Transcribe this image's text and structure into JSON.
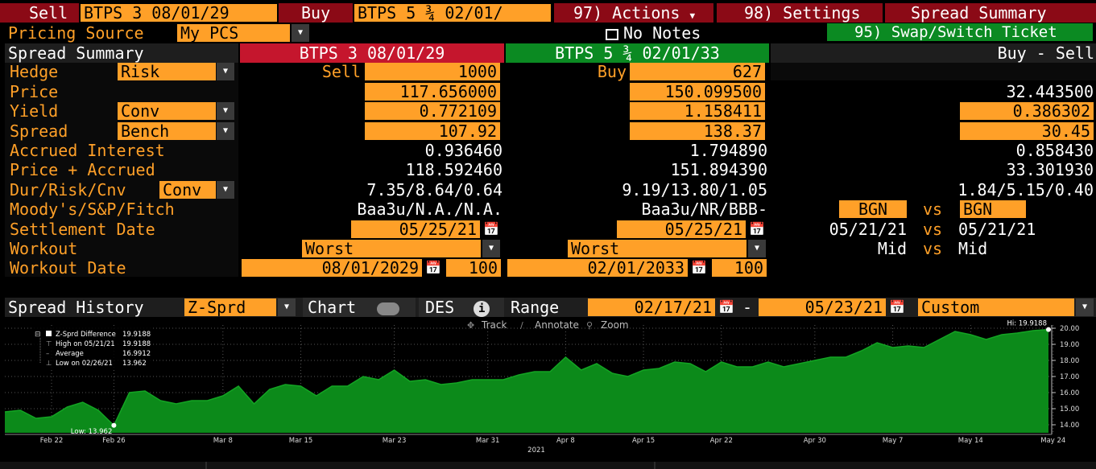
{
  "top": {
    "sell_label": "Sell",
    "sell_security": "BTPS 3 08/01/29",
    "buy_label": "Buy",
    "buy_security": "BTPS 5 ¾ 02/01/",
    "actions": "97) Actions",
    "settings": "98) Settings",
    "spread_summary": "Spread Summary"
  },
  "second": {
    "pricing_source_label": "Pricing Source",
    "pricing_source": "My PCS",
    "no_notes": "No Notes",
    "swap_ticket": "95) Swap/Switch Ticket"
  },
  "table": {
    "title": "Spread Summary",
    "col_sell": "BTPS 3 08/01/29",
    "col_buy": "BTPS 5 ¾ 02/01/33",
    "col_diff": "Buy - Sell",
    "rows": {
      "hedge": {
        "label": "Hedge",
        "option": "Risk",
        "sell_label": "Sell",
        "sell": "1000",
        "buy_label": "Buy",
        "buy": "627"
      },
      "price": {
        "label": "Price",
        "sell": "117.656000",
        "buy": "150.099500",
        "diff": "32.443500"
      },
      "yield": {
        "label": "Yield",
        "option": "Conv",
        "sell": "0.772109",
        "buy": "1.158411",
        "diff": "0.386302"
      },
      "spread": {
        "label": "Spread",
        "option": "Bench",
        "sell": "107.92",
        "buy": "138.37",
        "diff": "30.45"
      },
      "accrued": {
        "label": "Accrued Interest",
        "sell": "0.936460",
        "buy": "1.794890",
        "diff": "0.858430"
      },
      "price_accrued": {
        "label": "Price + Accrued",
        "sell": "118.592460",
        "buy": "151.894390",
        "diff": "33.301930"
      },
      "dur": {
        "label": "Dur/Risk/Cnv",
        "option": "Conv",
        "sell": "7.35/8.64/0.64",
        "buy": "9.19/13.80/1.05",
        "diff": "1.84/5.15/0.40"
      },
      "ratings": {
        "label": "Moody's/S&P/Fitch",
        "sell": "Baa3u/N.A./N.A.",
        "buy": "Baa3u/NR/BBB-",
        "diff_a": "BGN",
        "vs": "vs",
        "diff_b": "BGN"
      },
      "settlement": {
        "label": "Settlement Date",
        "sell": "05/25/21",
        "buy": "05/25/21",
        "diff_a": "05/21/21",
        "vs": "vs",
        "diff_b": "05/21/21"
      },
      "workout": {
        "label": "Workout",
        "sell": "Worst",
        "buy": "Worst",
        "diff_a": "Mid",
        "vs": "vs",
        "diff_b": "Mid"
      },
      "workout_date": {
        "label": "Workout Date",
        "sell": "08/01/2029",
        "sell_px": "100",
        "buy": "02/01/2033",
        "buy_px": "100"
      }
    }
  },
  "history_bar": {
    "label": "Spread History",
    "field": "Z-Sprd",
    "chart": "Chart",
    "des": "DES",
    "range_label": "Range",
    "start": "02/17/21",
    "dash": "-",
    "end": "05/23/21",
    "period": "Custom"
  },
  "chart_tools": {
    "track": "Track",
    "annotate": "Annotate",
    "zoom": "Zoom"
  },
  "legend": {
    "title": "Z-Sprd Difference",
    "title_val": "19.9188",
    "high": "High on 05/21/21",
    "high_val": "19.9188",
    "avg": "Average",
    "avg_val": "16.9912",
    "low": "Low on 02/26/21",
    "low_val": "13.962"
  },
  "chart_data": {
    "type": "area",
    "series": [
      {
        "name": "Z-Sprd Difference",
        "color": "#0c8a1a"
      }
    ],
    "x": [
      "02/17",
      "02/18",
      "02/19",
      "02/22",
      "02/23",
      "02/24",
      "02/25",
      "02/26",
      "02/27",
      "03/01",
      "03/02",
      "03/03",
      "03/04",
      "03/05",
      "03/08",
      "03/09",
      "03/10",
      "03/11",
      "03/12",
      "03/15",
      "03/16",
      "03/17",
      "03/18",
      "03/19",
      "03/22",
      "03/23",
      "03/24",
      "03/25",
      "03/26",
      "03/29",
      "03/30",
      "03/31",
      "04/01",
      "04/05",
      "04/06",
      "04/07",
      "04/08",
      "04/09",
      "04/12",
      "04/13",
      "04/14",
      "04/15",
      "04/16",
      "04/19",
      "04/20",
      "04/21",
      "04/22",
      "04/23",
      "04/26",
      "04/27",
      "04/28",
      "04/29",
      "04/30",
      "05/03",
      "05/04",
      "05/05",
      "05/06",
      "05/07",
      "05/10",
      "05/11",
      "05/12",
      "05/13",
      "05/14",
      "05/17",
      "05/18",
      "05/19",
      "05/20",
      "05/21"
    ],
    "y": [
      14.8,
      14.9,
      14.4,
      14.5,
      15.1,
      15.4,
      14.9,
      13.962,
      16.0,
      16.1,
      15.5,
      15.3,
      15.5,
      15.5,
      15.8,
      16.4,
      15.3,
      16.2,
      16.5,
      16.4,
      15.8,
      16.4,
      16.4,
      17.0,
      16.8,
      17.4,
      16.7,
      16.8,
      16.5,
      16.6,
      16.8,
      16.8,
      16.8,
      17.1,
      17.3,
      17.3,
      18.2,
      17.4,
      17.8,
      17.2,
      17.0,
      17.4,
      17.5,
      17.9,
      17.8,
      17.3,
      17.9,
      17.6,
      17.6,
      17.9,
      17.6,
      17.8,
      18.0,
      18.2,
      18.2,
      18.6,
      19.1,
      18.8,
      18.9,
      18.8,
      19.3,
      19.8,
      19.6,
      19.3,
      19.6,
      19.7,
      19.85,
      19.9188
    ],
    "x_ticks": [
      "Feb 22",
      "Feb 26",
      "Mar 8",
      "Mar 15",
      "Mar 23",
      "Mar 31",
      "Apr 8",
      "Apr 15",
      "Apr 22",
      "Apr 30",
      "May 7",
      "May 14",
      "May 24"
    ],
    "x_tick_index": [
      3,
      7,
      14,
      19,
      25,
      31,
      36,
      41,
      46,
      52,
      57,
      62,
      67.3
    ],
    "x_sub_label": "2021",
    "y_ticks": [
      "14.00",
      "15.00",
      "16.00",
      "17.00",
      "18.00",
      "19.00",
      "20.00"
    ],
    "ylim": [
      13.5,
      20.2
    ],
    "annot_high": "Hi: 19.9188",
    "annot_low": "Low: 13.962",
    "grid": true
  }
}
